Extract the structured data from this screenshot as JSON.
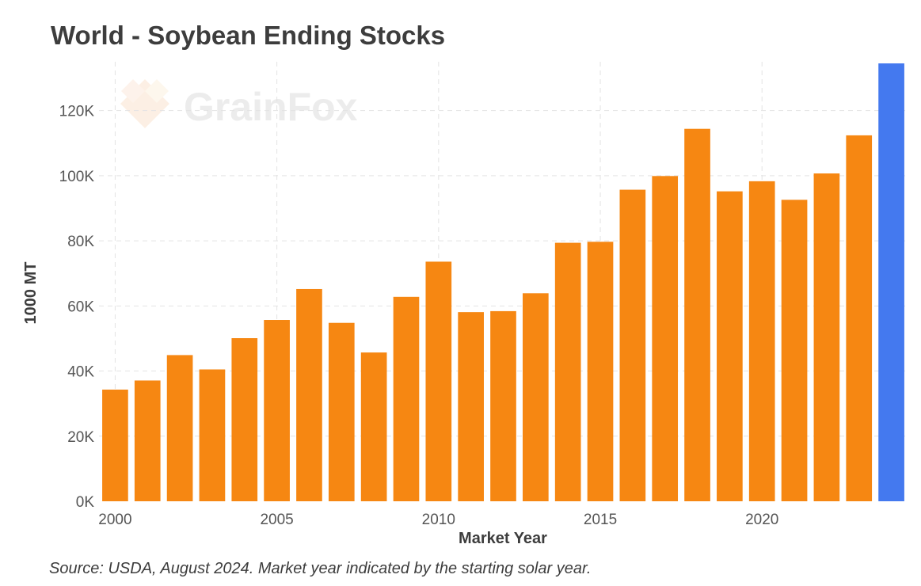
{
  "chart_data": {
    "type": "bar",
    "title": "World - Soybean Ending Stocks",
    "xlabel": "Market Year",
    "ylabel": "1000 MT",
    "x": [
      2000,
      2001,
      2002,
      2003,
      2004,
      2005,
      2006,
      2007,
      2008,
      2009,
      2010,
      2011,
      2012,
      2013,
      2014,
      2015,
      2016,
      2017,
      2018,
      2019,
      2020,
      2021,
      2022,
      2023,
      2024
    ],
    "values": [
      34300,
      37100,
      44900,
      40500,
      50100,
      55700,
      65200,
      54800,
      45700,
      62800,
      73600,
      58100,
      58400,
      63900,
      79400,
      79700,
      95700,
      99900,
      114400,
      95200,
      98300,
      92600,
      100700,
      112400,
      134500
    ],
    "highlight_index": 24,
    "ylim": [
      0,
      135000
    ],
    "yticks": [
      0,
      20000,
      40000,
      60000,
      80000,
      100000,
      120000
    ],
    "ytick_labels": [
      "0K",
      "20K",
      "40K",
      "60K",
      "80K",
      "100K",
      "120K"
    ],
    "xticks": [
      2000,
      2005,
      2010,
      2015,
      2020
    ],
    "grid": true,
    "colors": {
      "bar": "#f68712",
      "highlight": "#4479ef",
      "grid": "#e3e3e3"
    },
    "source": "Source: USDA, August 2024. Market year indicated by the starting solar year.",
    "watermark": "GrainFox"
  }
}
